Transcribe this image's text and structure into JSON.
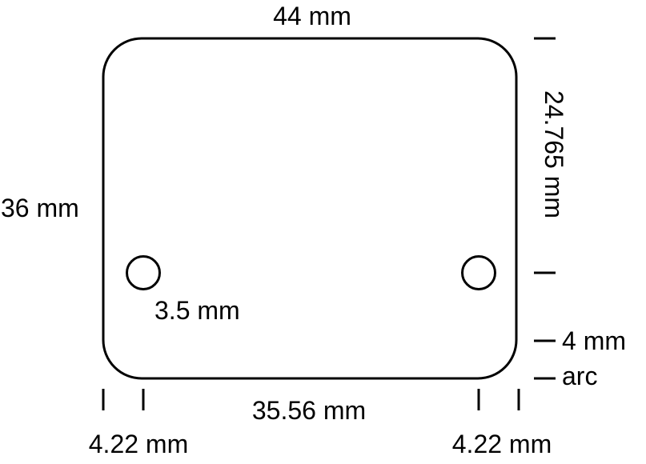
{
  "labels": {
    "width": "44 mm",
    "height": "36 mm",
    "hole_offset_from_top": "24.765 mm",
    "hole_diameter": "3.5 mm",
    "hole_spacing": "35.56 mm",
    "left_hole_offset": "4.22 mm",
    "right_hole_offset": "4.22 mm",
    "corner_radius": "4 mm",
    "corner_note": "arc"
  },
  "colors": {
    "stroke": "#000000",
    "background": "#ffffff"
  }
}
